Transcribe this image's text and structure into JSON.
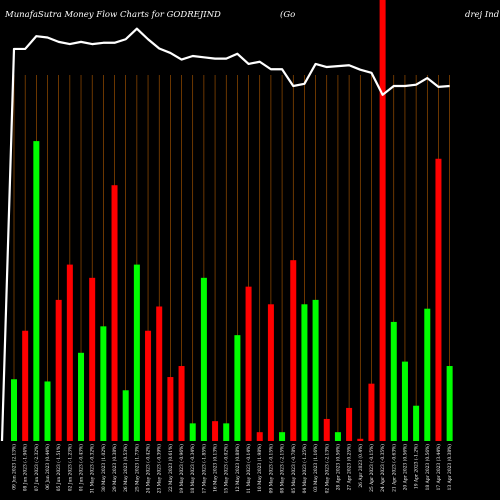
{
  "chart_data": {
    "type": "bar",
    "title_left": "MunafaSutra  Money Flow  Charts for GODREJIND",
    "title_mid": "(Go",
    "title_right": "drej Ind",
    "colors": {
      "background": "#000000",
      "up": "#00ff00",
      "down": "#ff0000",
      "gridline": "#b05a00",
      "price_line": "#ffffff",
      "text": "#ffffff"
    },
    "ylim": [
      0,
      100
    ],
    "bars": [
      {
        "label": "09 Jun 2023 (2.13%)",
        "color": "green",
        "value": 14
      },
      {
        "label": "08 Jun 2023 (-1.94%)",
        "color": "red",
        "value": 25
      },
      {
        "label": "07 Jun 2023 (-2.32%)",
        "color": "green",
        "value": 68
      },
      {
        "label": "06 Jun 2023 (0.44%)",
        "color": "green",
        "value": 13.5
      },
      {
        "label": "05 Jun 2023 (-1.51%)",
        "color": "red",
        "value": 32
      },
      {
        "label": "02 Jun 2023 (-1.23%)",
        "color": "red",
        "value": 40
      },
      {
        "label": "01 Jun 2023 (-0.43%)",
        "color": "green",
        "value": 20
      },
      {
        "label": "31 May 2023 (-0.32%)",
        "color": "red",
        "value": 37
      },
      {
        "label": "30 May 2023 (1.02%)",
        "color": "green",
        "value": 26
      },
      {
        "label": "29 May 2023 (0.38%)",
        "color": "red",
        "value": 58
      },
      {
        "label": "26 May 2023 (0.53%)",
        "color": "green",
        "value": 11.5
      },
      {
        "label": "25 May 2023 (1.73%)",
        "color": "green",
        "value": 40
      },
      {
        "label": "24 May 2023 (-0.42%)",
        "color": "red",
        "value": 25
      },
      {
        "label": "23 May 2023 (-0.39%)",
        "color": "red",
        "value": 30.5
      },
      {
        "label": "22 May 2023 (0.61%)",
        "color": "red",
        "value": 14.5
      },
      {
        "label": "19 May 2023 (-0.96%)",
        "color": "red",
        "value": 17
      },
      {
        "label": "18 May 2023 (-0.34%)",
        "color": "green",
        "value": 4
      },
      {
        "label": "17 May 2023 (-1.85%)",
        "color": "green",
        "value": 37
      },
      {
        "label": "16 May 2023 (0.13%)",
        "color": "red",
        "value": 4.5
      },
      {
        "label": "15 May 2023 (-0.02%)",
        "color": "green",
        "value": 4
      },
      {
        "label": "12 May 2023 (0.88%)",
        "color": "green",
        "value": 24
      },
      {
        "label": "11 May 2023 (-0.14%)",
        "color": "red",
        "value": 35
      },
      {
        "label": "10 May 2023 (1.98%)",
        "color": "red",
        "value": 2
      },
      {
        "label": "09 May 2023 (-0.15%)",
        "color": "red",
        "value": 31
      },
      {
        "label": "08 May 2023 (-2.15%)",
        "color": "green",
        "value": 2
      },
      {
        "label": "05 May 2023 (-0.78%)",
        "color": "red",
        "value": 41
      },
      {
        "label": "04 May 2023 (-1.25%)",
        "color": "green",
        "value": 31
      },
      {
        "label": "03 May 2023 (1.16%)",
        "color": "green",
        "value": 32
      },
      {
        "label": "02 May 2023 (-2.13%)",
        "color": "red",
        "value": 5
      },
      {
        "label": "28 Apr 2023 (0.56%)",
        "color": "green",
        "value": 2
      },
      {
        "label": "27 Apr 2023 (0.25%)",
        "color": "red",
        "value": 7.5
      },
      {
        "label": "26 Apr 2023 (0.4%)",
        "color": "red",
        "value": 0.5
      },
      {
        "label": "25 Apr 2023 (-0.15%)",
        "color": "red",
        "value": 13
      },
      {
        "label": "24 Apr 2023 (-0.35%)",
        "color": "red",
        "value": 100
      },
      {
        "label": "21 Apr 2023 (-0.63%)",
        "color": "green",
        "value": 27
      },
      {
        "label": "20 Apr 2023 (0.56%)",
        "color": "green",
        "value": 18
      },
      {
        "label": "19 Apr 2023 (-1.2%)",
        "color": "green",
        "value": 8
      },
      {
        "label": "18 Apr 2023 (0.56%)",
        "color": "green",
        "value": 30
      },
      {
        "label": "17 Apr 2023 (3.44%)",
        "color": "red",
        "value": 64
      },
      {
        "label": "13 Apr 2023 (0.38%)",
        "color": "green",
        "value": 17
      }
    ],
    "price_line": [
      {
        "x": 0,
        "y": 88.9
      },
      {
        "x": 1,
        "y": 88.9
      },
      {
        "x": 2,
        "y": 91.8
      },
      {
        "x": 3,
        "y": 91.5
      },
      {
        "x": 4,
        "y": 90.5
      },
      {
        "x": 5,
        "y": 90
      },
      {
        "x": 6,
        "y": 90.5
      },
      {
        "x": 7,
        "y": 90
      },
      {
        "x": 8,
        "y": 90.3
      },
      {
        "x": 9,
        "y": 90.3
      },
      {
        "x": 10,
        "y": 91.1
      },
      {
        "x": 11,
        "y": 93.5
      },
      {
        "x": 12,
        "y": 91.1
      },
      {
        "x": 13,
        "y": 89
      },
      {
        "x": 14,
        "y": 88
      },
      {
        "x": 15,
        "y": 86.5
      },
      {
        "x": 16,
        "y": 87.3
      },
      {
        "x": 17,
        "y": 87
      },
      {
        "x": 18,
        "y": 86.7
      },
      {
        "x": 19,
        "y": 86.7
      },
      {
        "x": 20,
        "y": 87.8
      },
      {
        "x": 21,
        "y": 85.5
      },
      {
        "x": 22,
        "y": 86
      },
      {
        "x": 23,
        "y": 84.3
      },
      {
        "x": 24,
        "y": 84.3
      },
      {
        "x": 25,
        "y": 80.5
      },
      {
        "x": 26,
        "y": 81
      },
      {
        "x": 27,
        "y": 85.5
      },
      {
        "x": 28,
        "y": 84.8
      },
      {
        "x": 29,
        "y": 85
      },
      {
        "x": 30,
        "y": 85.2
      },
      {
        "x": 31,
        "y": 84.2
      },
      {
        "x": 32,
        "y": 83.5
      },
      {
        "x": 33,
        "y": 78.5
      },
      {
        "x": 34,
        "y": 80.5
      },
      {
        "x": 35,
        "y": 80.5
      },
      {
        "x": 36,
        "y": 80.8
      },
      {
        "x": 37,
        "y": 82.3
      },
      {
        "x": 38,
        "y": 80.3
      },
      {
        "x": 39,
        "y": 80.5
      }
    ]
  }
}
